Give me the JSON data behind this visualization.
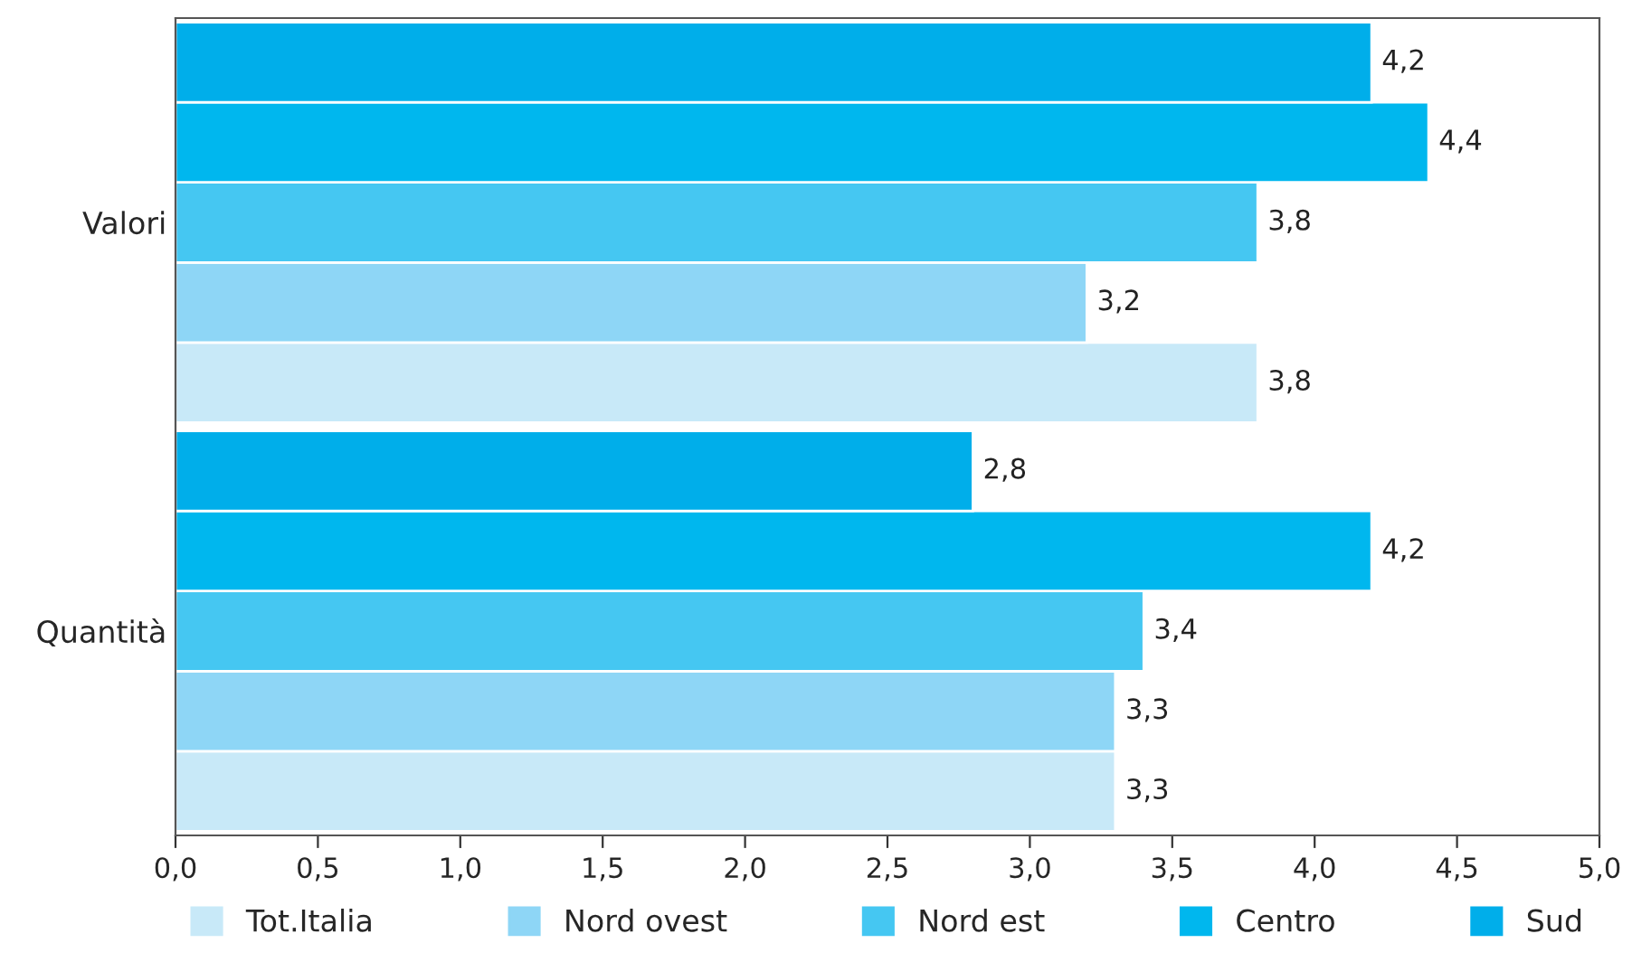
{
  "chart_data": {
    "type": "bar",
    "orientation": "horizontal",
    "categories": [
      "Valori",
      "Quantità"
    ],
    "series": [
      {
        "name": "Tot.Italia",
        "color": "#c8e9f8",
        "values": [
          3.8,
          3.3
        ],
        "value_labels": [
          "3,8",
          "3,3"
        ]
      },
      {
        "name": "Nord ovest",
        "color": "#8ed6f6",
        "values": [
          3.2,
          3.3
        ],
        "value_labels": [
          "3,2",
          "3,3"
        ]
      },
      {
        "name": "Nord est",
        "color": "#45c7f2",
        "values": [
          3.8,
          3.4
        ],
        "value_labels": [
          "3,8",
          "3,4"
        ]
      },
      {
        "name": "Centro",
        "color": "#00b7ee",
        "values": [
          4.4,
          4.2
        ],
        "value_labels": [
          "4,4",
          "4,2"
        ]
      },
      {
        "name": "Sud",
        "color": "#00aeea",
        "values": [
          4.2,
          2.8
        ],
        "value_labels": [
          "4,2",
          "2,8"
        ]
      }
    ],
    "xlim": [
      0,
      5
    ],
    "xticks": [
      {
        "value": 0,
        "label": "0,0"
      },
      {
        "value": 0.5,
        "label": "0,5"
      },
      {
        "value": 1,
        "label": "1,0"
      },
      {
        "value": 1.5,
        "label": "1,5"
      },
      {
        "value": 2,
        "label": "2,0"
      },
      {
        "value": 2.5,
        "label": "2,5"
      },
      {
        "value": 3,
        "label": "3,0"
      },
      {
        "value": 3.5,
        "label": "3,5"
      },
      {
        "value": 4,
        "label": "4,0"
      },
      {
        "value": 4.5,
        "label": "4,5"
      },
      {
        "value": 5,
        "label": "5,0"
      }
    ],
    "grid": false,
    "legend": "bottom"
  }
}
